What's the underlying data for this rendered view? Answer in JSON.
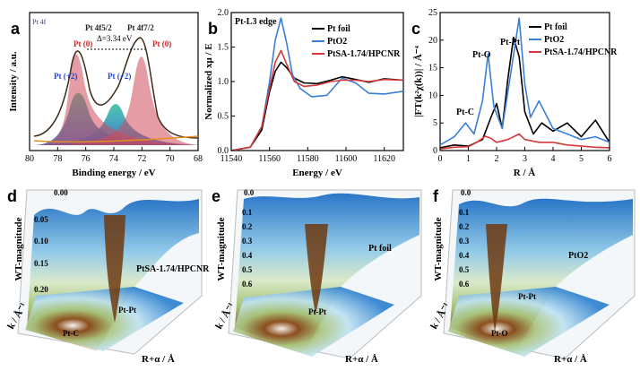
{
  "colors": {
    "pt_foil": "#000000",
    "pto2": "#3a7fd6",
    "pt_sa": "#d43a3a",
    "pt0_peak": "#cc2222",
    "pt2_peak": "#2244cc",
    "background": "#e39020"
  },
  "panels": {
    "a": {
      "letter": "a",
      "tag": "Pt 4f",
      "labels": {
        "pt4f52": "Pt 4f5/2",
        "pt4f72": "Pt 4f7/2",
        "pt0": "Pt (0)",
        "pt2": "Pt (+2)",
        "delta": "Δ=3.34 eV"
      }
    },
    "b": {
      "letter": "b",
      "edge": "Pt-L3 edge"
    },
    "c": {
      "letter": "c"
    },
    "d": {
      "letter": "d",
      "zticks": [
        "0.00",
        "0.05",
        "0.10",
        "0.15",
        "0.20"
      ],
      "zlabel": "WT-magnitude",
      "sample": "PtSA-1.74/HPCNR",
      "peaks": [
        "Pt-Pt",
        "Pt-C"
      ],
      "klabel": "k / Å⁻¹",
      "rlabel": "R+α / Å"
    },
    "e": {
      "letter": "e",
      "zticks": [
        "0.0",
        "0.1",
        "0.2",
        "0.3",
        "0.4",
        "0.5",
        "0.6"
      ],
      "zlabel": "WT-magnitude",
      "sample": "Pt foil",
      "peaks": [
        "Pt-Pt"
      ],
      "klabel": "k / Å⁻¹",
      "rlabel": "R+α / Å"
    },
    "f": {
      "letter": "f",
      "zticks": [
        "0.0",
        "0.1",
        "0.2",
        "0.3",
        "0.4",
        "0.5",
        "0.6"
      ],
      "zlabel": "WT-magnitude",
      "sample": "PtO2",
      "peaks": [
        "Pt-Pt",
        "Pt-O"
      ],
      "klabel": "k / Å⁻¹",
      "rlabel": "R+α / Å"
    }
  },
  "chart_data": [
    {
      "type": "area",
      "xlabel": "Binding energy / eV",
      "ylabel": "Intensity / a.u.",
      "xlim": [
        80,
        68
      ],
      "xticks": [
        "80",
        "78",
        "76",
        "74",
        "72",
        "70",
        "68"
      ],
      "reversed_x": true
    },
    {
      "type": "line",
      "xlabel": "Energy / eV",
      "ylabel": "Normalized xμ / E",
      "xlim": [
        11540,
        11630
      ],
      "ylim": [
        0,
        2.0
      ],
      "xticks": [
        "11540",
        "11560",
        "11580",
        "11600",
        "11620"
      ],
      "yticks": [
        "0.0",
        "0.5",
        "1.0",
        "1.5",
        "2.0"
      ],
      "series": [
        {
          "name": "Pt foil",
          "x": [
            11540,
            11550,
            11556,
            11560,
            11563,
            11566,
            11569,
            11573,
            11578,
            11585,
            11592,
            11598,
            11605,
            11612,
            11620,
            11630
          ],
          "y": [
            0.0,
            0.05,
            0.3,
            0.85,
            1.15,
            1.28,
            1.2,
            1.05,
            0.98,
            0.97,
            1.02,
            1.07,
            1.03,
            0.99,
            1.04,
            1.02
          ]
        },
        {
          "name": "PtO2",
          "x": [
            11540,
            11550,
            11556,
            11560,
            11563,
            11566,
            11569,
            11572,
            11576,
            11582,
            11590,
            11598,
            11605,
            11612,
            11620,
            11630
          ],
          "y": [
            0.0,
            0.05,
            0.35,
            1.0,
            1.6,
            1.92,
            1.55,
            1.1,
            0.9,
            0.78,
            0.8,
            1.05,
            0.98,
            0.83,
            0.82,
            0.86
          ]
        },
        {
          "name": "PtSA-1.74/HPCNR",
          "x": [
            11540,
            11550,
            11556,
            11560,
            11563,
            11566,
            11569,
            11573,
            11578,
            11585,
            11592,
            11598,
            11605,
            11612,
            11620,
            11630
          ],
          "y": [
            0.0,
            0.05,
            0.35,
            0.9,
            1.28,
            1.45,
            1.25,
            1.0,
            0.93,
            0.95,
            1.0,
            1.02,
            1.02,
            1.0,
            1.03,
            1.02
          ]
        }
      ]
    },
    {
      "type": "line",
      "xlabel": "R / Å",
      "ylabel": "|FT(k²χ(k))| / Å⁻⁴",
      "xlim": [
        0,
        6
      ],
      "ylim": [
        0,
        25
      ],
      "xticks": [
        "0",
        "1",
        "2",
        "3",
        "4",
        "5",
        "6"
      ],
      "yticks": [
        "0",
        "5",
        "10",
        "15",
        "20",
        "25"
      ],
      "annotations": [
        "Pt-O",
        "Pt-Pt",
        "Pt-C"
      ],
      "series": [
        {
          "name": "Pt foil",
          "x": [
            0,
            0.5,
            1.0,
            1.5,
            1.8,
            2.0,
            2.2,
            2.4,
            2.6,
            2.8,
            3.0,
            3.3,
            3.6,
            4.0,
            4.5,
            5.0,
            5.5,
            6.0
          ],
          "y": [
            0.5,
            1.0,
            0.8,
            2.0,
            6.0,
            8.5,
            4.0,
            13.0,
            20.5,
            17.0,
            7.0,
            3.0,
            5.0,
            3.5,
            5.0,
            2.5,
            5.5,
            1.5
          ]
        },
        {
          "name": "PtO2",
          "x": [
            0,
            0.5,
            0.9,
            1.2,
            1.5,
            1.7,
            1.9,
            2.2,
            2.5,
            2.8,
            3.0,
            3.2,
            3.5,
            4.0,
            4.5,
            5.0,
            5.5,
            6.0
          ],
          "y": [
            1.0,
            2.5,
            5.0,
            3.0,
            9.0,
            17.5,
            8.0,
            4.0,
            14.0,
            24.0,
            12.0,
            6.0,
            9.0,
            4.0,
            3.0,
            2.0,
            2.5,
            1.5
          ]
        },
        {
          "name": "PtSA-1.74/HPCNR",
          "x": [
            0,
            0.5,
            1.0,
            1.3,
            1.6,
            1.8,
            2.0,
            2.4,
            2.8,
            3.0,
            3.5,
            4.0,
            4.5,
            5.0,
            5.5,
            6.0
          ],
          "y": [
            0.3,
            0.6,
            0.7,
            1.5,
            2.6,
            2.2,
            1.5,
            2.0,
            3.0,
            2.0,
            1.5,
            1.5,
            1.0,
            0.8,
            0.6,
            0.5
          ]
        }
      ]
    }
  ]
}
